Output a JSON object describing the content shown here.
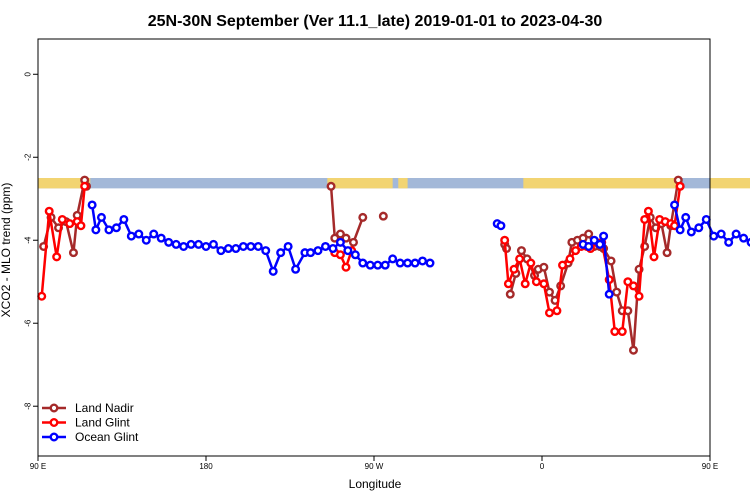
{
  "chart_data": {
    "type": "line",
    "title": "25N-30N September (Ver 11.1_late)   2019-01-01 to 2023-04-30",
    "xlabel": "Longitude",
    "ylabel": "XCO2 - MLO trend (ppm)",
    "xlim": [
      90,
      450
    ],
    "ylim": [
      -9.2,
      0.85
    ],
    "x_ticks": [
      {
        "value": 90,
        "label": "90 E"
      },
      {
        "value": 180,
        "label": "180"
      },
      {
        "value": 270,
        "label": "90 W"
      },
      {
        "value": 360,
        "label": "0"
      },
      {
        "value": 450,
        "label": "90 E"
      },
      {
        "value": 540,
        "label": "180"
      }
    ],
    "y_ticks": [
      {
        "value": 0,
        "label": "0"
      },
      {
        "value": -2,
        "label": "-2"
      },
      {
        "value": -4,
        "label": "-4"
      },
      {
        "value": -6,
        "label": "-6"
      },
      {
        "value": -8,
        "label": "-8"
      }
    ],
    "x_tick_positions": [
      90,
      180,
      270,
      360,
      450,
      540
    ],
    "land_band": {
      "y_top": -2.5,
      "y_bottom": -2.75,
      "ocean_color": "#a3b8d8",
      "land_color": "#f2d472",
      "land_segments": [
        [
          90,
          118
        ],
        [
          245,
          280
        ],
        [
          283,
          288
        ],
        [
          350,
          432
        ],
        [
          450,
          478
        ]
      ]
    },
    "legend_position": "bottom-left",
    "series": [
      {
        "name": "Land Nadir",
        "color": "#a52a2a",
        "segments": [
          [
            [
              93,
              -4.15
            ],
            [
              97,
              -3.45
            ],
            [
              101,
              -3.7
            ],
            [
              105,
              -3.55
            ],
            [
              109,
              -4.3
            ],
            [
              111,
              -3.4
            ],
            [
              115,
              -2.55
            ],
            [
              116,
              -2.7
            ]
          ],
          [
            [
              247,
              -2.7
            ],
            [
              249,
              -3.95
            ],
            [
              252,
              -3.85
            ],
            [
              255,
              -3.95
            ],
            [
              259,
              -4.05
            ],
            [
              264,
              -3.45
            ]
          ],
          [
            [
              275,
              -3.42
            ]
          ],
          [
            [
              340,
              -4.1
            ],
            [
              341,
              -4.2
            ]
          ],
          [
            [
              343,
              -5.3
            ],
            [
              346,
              -4.8
            ],
            [
              349,
              -4.25
            ],
            [
              352,
              -4.45
            ],
            [
              356,
              -4.85
            ],
            [
              358,
              -4.7
            ],
            [
              361,
              -4.65
            ],
            [
              364,
              -5.25
            ],
            [
              367,
              -5.45
            ],
            [
              370,
              -5.1
            ],
            [
              374,
              -4.55
            ],
            [
              376,
              -4.05
            ],
            [
              379,
              -4.0
            ],
            [
              382,
              -3.95
            ],
            [
              385,
              -3.85
            ],
            [
              388,
              -4.15
            ],
            [
              391,
              -4.15
            ],
            [
              393,
              -4.2
            ],
            [
              397,
              -4.5
            ],
            [
              400,
              -5.25
            ],
            [
              403,
              -5.7
            ],
            [
              406,
              -5.7
            ],
            [
              409,
              -6.65
            ],
            [
              412,
              -4.7
            ],
            [
              415,
              -4.15
            ],
            [
              418,
              -3.45
            ],
            [
              421,
              -3.7
            ],
            [
              424,
              -3.6
            ],
            [
              427,
              -4.3
            ],
            [
              429,
              -3.65
            ],
            [
              433,
              -2.55
            ],
            [
              434,
              -2.7
            ]
          ]
        ]
      },
      {
        "name": "Land Glint",
        "color": "#ff0000",
        "segments": [
          [
            [
              92,
              -5.35
            ],
            [
              96,
              -3.3
            ],
            [
              100,
              -4.4
            ],
            [
              103,
              -3.5
            ],
            [
              107,
              -3.6
            ],
            [
              111,
              -3.55
            ],
            [
              113,
              -3.65
            ],
            [
              115,
              -2.7
            ]
          ],
          [
            [
              249,
              -4.3
            ],
            [
              252,
              -4.35
            ],
            [
              255,
              -4.65
            ],
            [
              258,
              -4.25
            ]
          ],
          [
            [
              340,
              -4.0
            ],
            [
              342,
              -5.05
            ],
            [
              345,
              -4.7
            ],
            [
              348,
              -4.45
            ],
            [
              351,
              -5.05
            ],
            [
              354,
              -4.55
            ],
            [
              357,
              -5.0
            ],
            [
              361,
              -5.05
            ],
            [
              364,
              -5.75
            ],
            [
              368,
              -5.7
            ],
            [
              371,
              -4.6
            ],
            [
              375,
              -4.45
            ],
            [
              378,
              -4.25
            ],
            [
              381,
              -4.15
            ],
            [
              384,
              -4.15
            ],
            [
              386,
              -4.2
            ],
            [
              389,
              -4.05
            ],
            [
              392,
              -4.05
            ],
            [
              396,
              -4.95
            ],
            [
              399,
              -6.2
            ],
            [
              403,
              -6.2
            ],
            [
              406,
              -5.0
            ],
            [
              409,
              -5.1
            ],
            [
              412,
              -5.35
            ],
            [
              415,
              -3.5
            ],
            [
              417,
              -3.3
            ],
            [
              420,
              -4.4
            ],
            [
              423,
              -3.5
            ],
            [
              426,
              -3.55
            ],
            [
              429,
              -3.6
            ],
            [
              431,
              -3.65
            ],
            [
              434,
              -2.7
            ]
          ]
        ]
      },
      {
        "name": "Ocean Glint",
        "color": "#0000ff",
        "segments": [
          [
            [
              119,
              -3.15
            ],
            [
              121,
              -3.75
            ],
            [
              124,
              -3.45
            ],
            [
              128,
              -3.75
            ],
            [
              132,
              -3.7
            ],
            [
              136,
              -3.5
            ],
            [
              140,
              -3.9
            ],
            [
              144,
              -3.85
            ],
            [
              148,
              -4.0
            ],
            [
              152,
              -3.85
            ],
            [
              156,
              -3.95
            ],
            [
              160,
              -4.05
            ],
            [
              164,
              -4.1
            ],
            [
              168,
              -4.15
            ],
            [
              172,
              -4.1
            ],
            [
              176,
              -4.1
            ],
            [
              180,
              -4.15
            ],
            [
              184,
              -4.1
            ],
            [
              188,
              -4.25
            ],
            [
              192,
              -4.2
            ],
            [
              196,
              -4.2
            ],
            [
              200,
              -4.15
            ],
            [
              204,
              -4.15
            ],
            [
              208,
              -4.15
            ],
            [
              212,
              -4.25
            ],
            [
              216,
              -4.75
            ],
            [
              220,
              -4.3
            ],
            [
              224,
              -4.15
            ],
            [
              228,
              -4.7
            ],
            [
              233,
              -4.3
            ],
            [
              236,
              -4.3
            ],
            [
              240,
              -4.25
            ],
            [
              244,
              -4.15
            ],
            [
              248,
              -4.2
            ],
            [
              252,
              -4.05
            ],
            [
              256,
              -4.25
            ],
            [
              260,
              -4.35
            ],
            [
              264,
              -4.55
            ],
            [
              268,
              -4.6
            ],
            [
              272,
              -4.6
            ],
            [
              276,
              -4.6
            ],
            [
              280,
              -4.45
            ],
            [
              284,
              -4.55
            ],
            [
              288,
              -4.55
            ],
            [
              292,
              -4.55
            ],
            [
              296,
              -4.5
            ],
            [
              300,
              -4.55
            ]
          ],
          [
            [
              336,
              -3.6
            ],
            [
              338,
              -3.65
            ]
          ],
          [
            [
              382,
              -4.1
            ],
            [
              385,
              -4.15
            ],
            [
              388,
              -4.0
            ],
            [
              391,
              -4.1
            ],
            [
              393,
              -3.9
            ],
            [
              396,
              -5.3
            ]
          ],
          [
            [
              431,
              -3.15
            ],
            [
              434,
              -3.75
            ],
            [
              437,
              -3.45
            ],
            [
              440,
              -3.8
            ],
            [
              444,
              -3.7
            ],
            [
              448,
              -3.5
            ],
            [
              452,
              -3.9
            ],
            [
              456,
              -3.85
            ],
            [
              460,
              -4.05
            ],
            [
              464,
              -3.85
            ],
            [
              468,
              -3.95
            ],
            [
              472,
              -4.05
            ],
            [
              476,
              -4.1
            ]
          ]
        ]
      }
    ]
  }
}
